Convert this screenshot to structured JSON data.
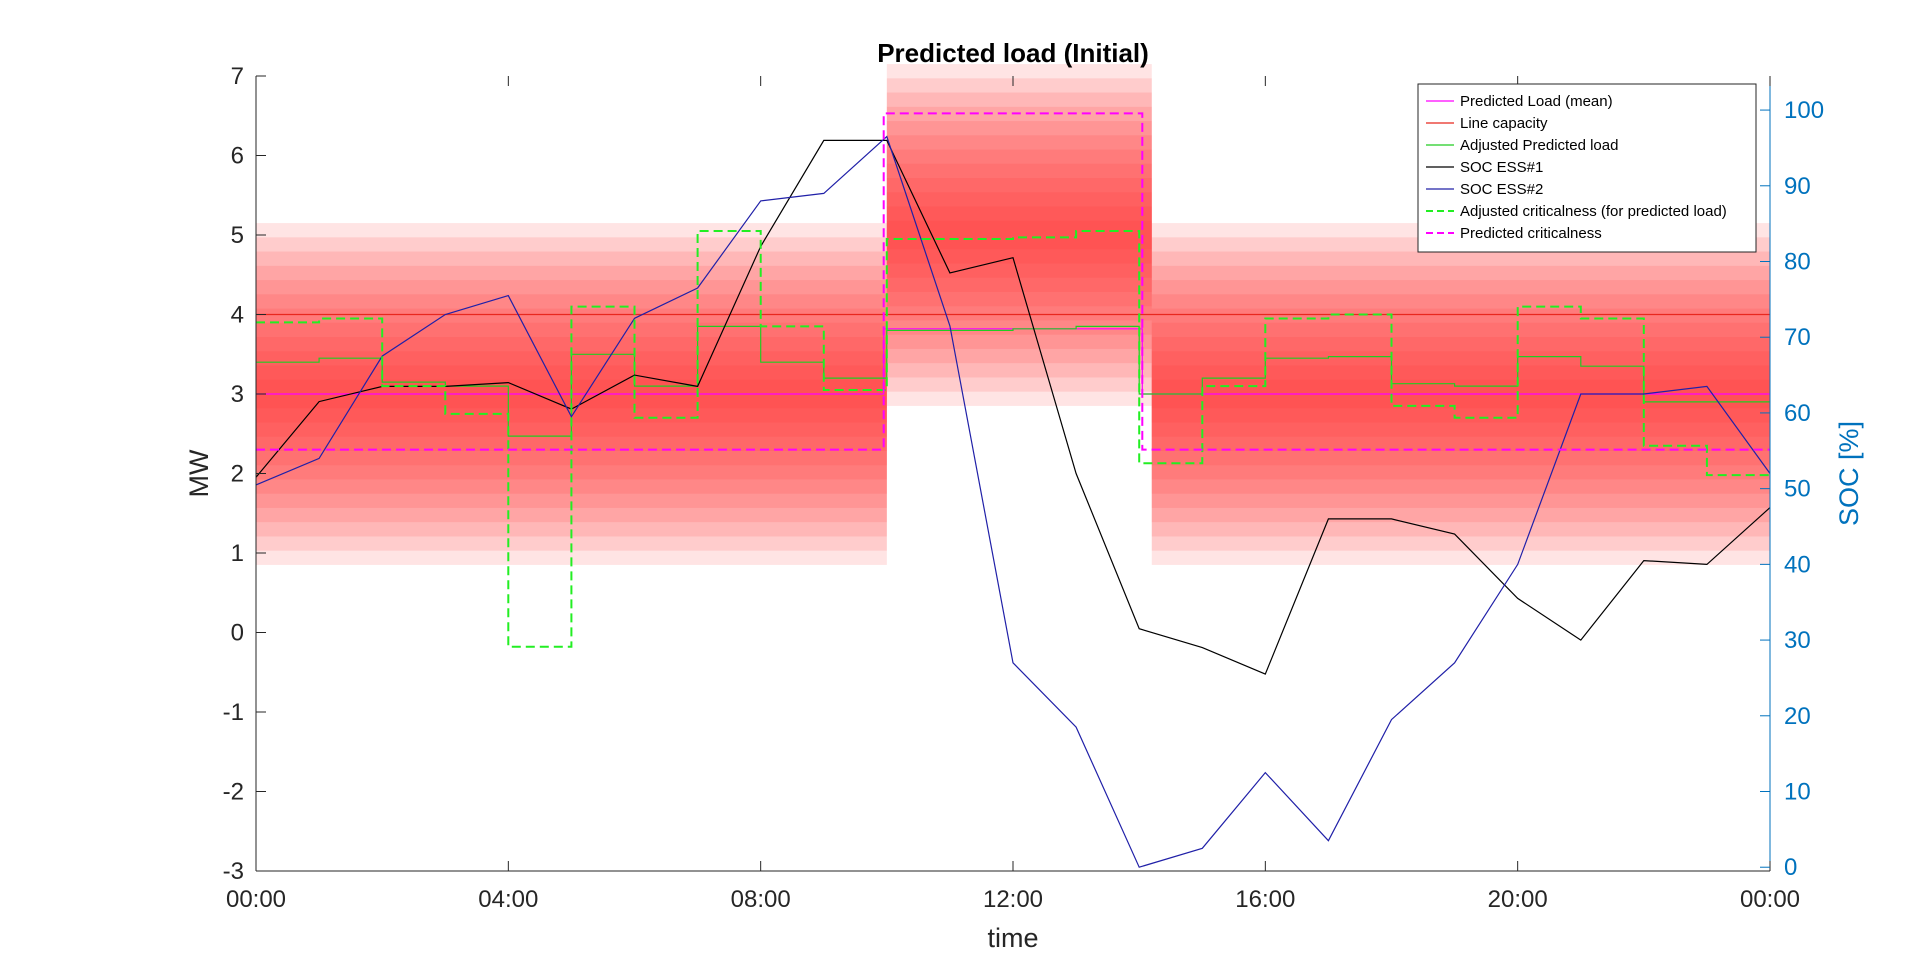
{
  "chart_data": {
    "type": "line",
    "title": "Predicted load (Initial)",
    "xlabel": "time",
    "ylabel": "MW",
    "y2label": "SOC [%]",
    "xlim": [
      0,
      24
    ],
    "ylim": [
      -3,
      7
    ],
    "y2lim": [
      -0.5,
      104.5
    ],
    "x_ticks": [
      0,
      4,
      8,
      12,
      16,
      20,
      24
    ],
    "x_tick_labels": [
      "00:00",
      "04:00",
      "08:00",
      "12:00",
      "16:00",
      "20:00",
      "00:00"
    ],
    "y_ticks": [
      -3,
      -2,
      -1,
      0,
      1,
      2,
      3,
      4,
      5,
      6,
      7
    ],
    "y_tick_labels": [
      "-3",
      "-2",
      "-1",
      "0",
      "1",
      "2",
      "3",
      "4",
      "5",
      "6",
      "7"
    ],
    "y2_ticks": [
      0,
      10,
      20,
      30,
      40,
      50,
      60,
      70,
      80,
      90,
      100
    ],
    "y2_tick_labels": [
      "0",
      "10",
      "20",
      "30",
      "40",
      "50",
      "60",
      "70",
      "80",
      "90",
      "100"
    ],
    "legend_position": "top-right",
    "grid": false,
    "uncertainty_bands": [
      {
        "x_start": 0,
        "x_end": 10,
        "mean": 3.0,
        "half_width": 2.15
      },
      {
        "x_start": 10,
        "x_end": 14.2,
        "mean": 5.0,
        "half_width": 2.15
      },
      {
        "x_start": 14.2,
        "x_end": 24,
        "mean": 3.0,
        "half_width": 2.15
      }
    ],
    "band_color": "#ff2b2b",
    "series": [
      {
        "name": "Predicted Load (mean)",
        "color": "#ff00ff",
        "style": "solid",
        "axis": "left",
        "step": true,
        "points": [
          [
            0,
            3.0
          ],
          [
            9.95,
            3.0
          ],
          [
            9.95,
            3.82
          ],
          [
            14.05,
            3.82
          ],
          [
            14.05,
            3.0
          ],
          [
            24,
            3.0
          ]
        ]
      },
      {
        "name": "Line capacity",
        "color": "#e8281f",
        "style": "solid",
        "axis": "left",
        "step": false,
        "points": [
          [
            0,
            4.0
          ],
          [
            24,
            4.0
          ]
        ]
      },
      {
        "name": "Adjusted Predicted load",
        "color": "#22cc22",
        "style": "solid",
        "axis": "left",
        "step": true,
        "x": [
          0,
          1,
          2,
          3,
          4,
          5,
          6,
          7,
          8,
          9,
          10,
          11,
          12,
          13,
          14,
          15,
          16,
          17,
          18,
          19,
          20,
          21,
          22,
          23,
          24
        ],
        "values": [
          3.4,
          3.45,
          3.15,
          3.1,
          2.47,
          3.5,
          3.1,
          3.85,
          3.4,
          3.2,
          3.8,
          3.8,
          3.82,
          3.85,
          3.0,
          3.2,
          3.45,
          3.47,
          3.13,
          3.1,
          3.47,
          3.35,
          2.9,
          2.9,
          2.9
        ]
      },
      {
        "name": "SOC ESS#1",
        "color": "#000000",
        "style": "solid",
        "axis": "right",
        "step": false,
        "x": [
          0,
          1,
          2,
          3,
          4,
          5,
          6,
          7,
          8,
          9,
          10,
          11,
          12,
          13,
          14,
          15,
          16,
          17,
          18,
          19,
          20,
          21,
          22,
          23,
          24
        ],
        "values": [
          51.5,
          61.5,
          63.5,
          63.5,
          64.0,
          60.5,
          65.0,
          63.5,
          82.0,
          96.0,
          96.0,
          78.5,
          80.5,
          52.0,
          31.5,
          29.0,
          25.5,
          46.0,
          46.0,
          44.0,
          35.5,
          30.0,
          40.5,
          40.0,
          47.5
        ]
      },
      {
        "name": "SOC ESS#2",
        "color": "#2020a8",
        "style": "solid",
        "axis": "right",
        "step": false,
        "x": [
          0,
          1,
          2,
          3,
          4,
          5,
          6,
          7,
          8,
          9,
          10,
          11,
          12,
          13,
          14,
          15,
          16,
          17,
          18,
          19,
          20,
          21,
          22,
          23,
          24
        ],
        "values": [
          50.5,
          54.0,
          67.5,
          73.0,
          75.5,
          59.5,
          72.5,
          76.5,
          88.0,
          89.0,
          96.5,
          71.5,
          27.0,
          18.5,
          0.0,
          2.5,
          12.5,
          3.5,
          19.5,
          27.0,
          40.0,
          62.5,
          62.5,
          63.5,
          52.0
        ]
      },
      {
        "name": "Adjusted criticalness (for predicted load)",
        "color": "#22ee22",
        "style": "dashed",
        "axis": "left",
        "step": true,
        "x": [
          0,
          1,
          2,
          3,
          4,
          5,
          6,
          7,
          8,
          9,
          10,
          11,
          12,
          13,
          14,
          15,
          16,
          17,
          18,
          19,
          20,
          21,
          22,
          23,
          24
        ],
        "values": [
          3.9,
          3.95,
          3.1,
          2.75,
          -0.18,
          4.1,
          2.7,
          5.05,
          3.85,
          3.05,
          4.95,
          4.95,
          4.97,
          5.05,
          2.13,
          3.1,
          3.95,
          4.0,
          2.85,
          2.7,
          4.1,
          3.95,
          2.35,
          1.98,
          1.98
        ]
      },
      {
        "name": "Predicted criticalness",
        "color": "#ff00ff",
        "style": "dashed",
        "axis": "left",
        "step": true,
        "points": [
          [
            0,
            2.3
          ],
          [
            9.95,
            2.3
          ],
          [
            9.95,
            6.53
          ],
          [
            14.05,
            6.53
          ],
          [
            14.05,
            2.3
          ],
          [
            24,
            2.3
          ]
        ]
      }
    ]
  }
}
